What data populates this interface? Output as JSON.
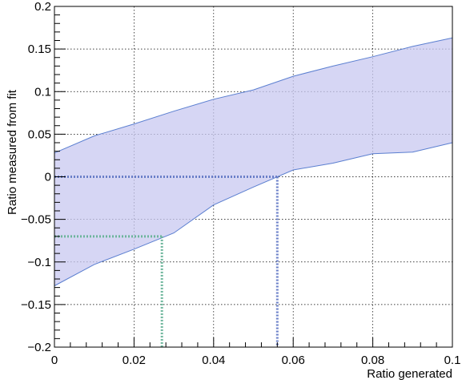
{
  "chart_data": {
    "type": "area",
    "title": "",
    "xlabel": "Ratio generated",
    "ylabel": "Ratio measured from fit",
    "xlim": [
      0,
      0.1
    ],
    "ylim": [
      -0.2,
      0.2
    ],
    "grid": true,
    "x_tick_labels": [
      "0",
      "0.02",
      "0.04",
      "0.06",
      "0.08",
      "0.1"
    ],
    "y_tick_labels": [
      "−0.2",
      "−0.15",
      "−0.1",
      "−0.05",
      "0",
      "0.05",
      "0.1",
      "0.15",
      "0.2"
    ],
    "x_ticks": [
      0,
      0.02,
      0.04,
      0.06,
      0.08,
      0.1
    ],
    "y_ticks": [
      -0.2,
      -0.15,
      -0.1,
      -0.05,
      0,
      0.05,
      0.1,
      0.15,
      0.2
    ],
    "band": {
      "fill_color": "#c8c8f0",
      "line_color": "#5b7fd0",
      "x": [
        0,
        0.01,
        0.02,
        0.03,
        0.04,
        0.05,
        0.06,
        0.07,
        0.08,
        0.09,
        0.1
      ],
      "upper": [
        0.028,
        0.048,
        0.062,
        0.077,
        0.091,
        0.102,
        0.118,
        0.13,
        0.141,
        0.153,
        0.163
      ],
      "lower": [
        -0.128,
        -0.103,
        -0.085,
        -0.066,
        -0.033,
        -0.012,
        0.008,
        0.016,
        0.027,
        0.029,
        0.04
      ]
    },
    "reference_lines": [
      {
        "color": "#6a7fc8",
        "segments": [
          [
            [
              0,
              0
            ],
            [
              0.056,
              0
            ]
          ],
          [
            [
              0.056,
              0
            ],
            [
              0.056,
              -0.2
            ]
          ]
        ]
      },
      {
        "color": "#6cb59b",
        "segments": [
          [
            [
              0,
              -0.07
            ],
            [
              0.027,
              -0.07
            ]
          ],
          [
            [
              0.027,
              -0.07
            ],
            [
              0.027,
              -0.2
            ]
          ]
        ]
      }
    ]
  }
}
